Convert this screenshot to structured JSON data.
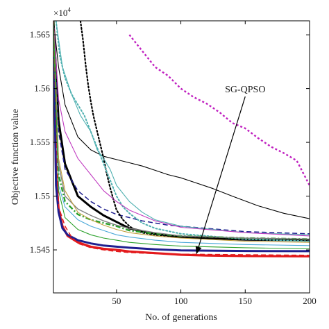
{
  "chart_data": {
    "type": "line",
    "xlabel": "No. of generations",
    "ylabel": "Objective function value",
    "y_multiplier": "×10",
    "y_multiplier_exp": "4",
    "xlim": [
      1,
      200
    ],
    "ylim": [
      15.41,
      15.663
    ],
    "xticks": [
      50,
      100,
      150,
      200
    ],
    "xtick_labels": [
      "50",
      "100",
      "150",
      "200"
    ],
    "yticks": [
      15.45,
      15.5,
      15.55,
      15.6,
      15.65
    ],
    "ytick_labels": [
      "1.545",
      "1.55",
      "1.555",
      "1.56",
      "1.565"
    ],
    "grid": false,
    "annotation": {
      "text": "SG-QPSO",
      "from": [
        150,
        15.59
      ],
      "to": [
        112,
        15.446
      ]
    },
    "series": [
      {
        "color": "#e31a1c",
        "style": "solid",
        "width": 3.2,
        "x": [
          1,
          3,
          5,
          8,
          12,
          20,
          30,
          40,
          50,
          60,
          80,
          100,
          120,
          150,
          200
        ],
        "y": [
          15.663,
          15.52,
          15.488,
          15.472,
          15.463,
          15.457,
          15.453,
          15.451,
          15.45,
          15.4485,
          15.447,
          15.4455,
          15.4448,
          15.4443,
          15.444
        ]
      },
      {
        "color": "#1f1f8f",
        "style": "solid",
        "width": 3.0,
        "x": [
          1,
          3,
          5,
          8,
          12,
          20,
          30,
          40,
          50,
          60,
          80,
          100,
          150,
          200
        ],
        "y": [
          15.663,
          15.51,
          15.485,
          15.47,
          15.464,
          15.459,
          15.456,
          15.454,
          15.453,
          15.452,
          15.4505,
          15.4495,
          15.449,
          15.4488
        ]
      },
      {
        "color": "#000000",
        "style": "solid",
        "width": 3.0,
        "x": [
          1,
          5,
          10,
          20,
          30,
          40,
          50,
          60,
          80,
          100,
          150,
          200
        ],
        "y": [
          15.663,
          15.57,
          15.53,
          15.5,
          15.49,
          15.482,
          15.476,
          15.47,
          15.465,
          15.462,
          15.4595,
          15.459
        ]
      },
      {
        "color": "#000000",
        "style": "solid",
        "width": 1.1,
        "x": [
          1,
          5,
          10,
          20,
          30,
          40,
          50,
          60,
          70,
          80,
          90,
          100,
          110,
          125,
          140,
          160,
          180,
          200
        ],
        "y": [
          15.663,
          15.62,
          15.585,
          15.555,
          15.543,
          15.537,
          15.534,
          15.531,
          15.528,
          15.524,
          15.52,
          15.517,
          15.513,
          15.507,
          15.5,
          15.491,
          15.484,
          15.479
        ]
      },
      {
        "color": "#1f1f8f",
        "style": "dashed",
        "width": 1.5,
        "x": [
          1,
          5,
          10,
          20,
          30,
          40,
          50,
          60,
          70,
          90,
          120,
          150,
          200
        ],
        "y": [
          15.663,
          15.56,
          15.525,
          15.505,
          15.495,
          15.488,
          15.483,
          15.48,
          15.477,
          15.473,
          15.47,
          15.467,
          15.465
        ]
      },
      {
        "color": "#c020c0",
        "style": "dotted-square",
        "width": 2.4,
        "x": [
          60,
          70,
          80,
          90,
          100,
          110,
          120,
          130,
          140,
          150,
          160,
          170,
          180,
          190,
          200
        ],
        "y": [
          15.65,
          15.635,
          15.62,
          15.612,
          15.6,
          15.592,
          15.586,
          15.578,
          15.568,
          15.563,
          15.554,
          15.546,
          15.54,
          15.533,
          15.51
        ]
      },
      {
        "color": "#000000",
        "style": "dotted-bold",
        "width": 2.2,
        "x": [
          22,
          24,
          26,
          28,
          30,
          32,
          35,
          38,
          40,
          42,
          45,
          48,
          50,
          55,
          60,
          65,
          70,
          80,
          100,
          150,
          200
        ],
        "y": [
          15.663,
          15.645,
          15.622,
          15.603,
          15.588,
          15.575,
          15.56,
          15.545,
          15.535,
          15.523,
          15.508,
          15.495,
          15.487,
          15.478,
          15.472,
          15.468,
          15.466,
          15.464,
          15.462,
          15.46,
          15.459
        ]
      },
      {
        "color": "#4fb0b0",
        "style": "dotted-bold",
        "width": 2.0,
        "x": [
          3,
          6,
          10,
          15,
          20,
          25,
          30,
          35,
          40,
          45,
          50,
          55,
          60,
          70,
          80,
          100,
          150,
          200
        ],
        "y": [
          15.663,
          15.63,
          15.61,
          15.595,
          15.585,
          15.575,
          15.56,
          15.545,
          15.53,
          15.515,
          15.5,
          15.49,
          15.484,
          15.475,
          15.47,
          15.465,
          15.46,
          15.458
        ]
      },
      {
        "color": "#2aa02a",
        "style": "dashdot",
        "width": 2.4,
        "x": [
          1,
          5,
          10,
          20,
          30,
          40,
          50,
          60,
          80,
          100,
          150,
          200
        ],
        "y": [
          15.663,
          15.52,
          15.495,
          15.483,
          15.478,
          15.475,
          15.472,
          15.468,
          15.465,
          15.463,
          15.461,
          15.46
        ]
      },
      {
        "color": "#808080",
        "style": "solid",
        "width": 1.4,
        "x": [
          1,
          5,
          10,
          20,
          30,
          40,
          50,
          60,
          80,
          100,
          150,
          200
        ],
        "y": [
          15.663,
          15.53,
          15.5,
          15.488,
          15.482,
          15.477,
          15.473,
          15.47,
          15.466,
          15.463,
          15.461,
          15.46
        ]
      },
      {
        "color": "#4fb0b0",
        "style": "solid",
        "width": 1.1,
        "x": [
          3,
          8,
          15,
          22,
          30,
          35,
          40,
          45,
          50,
          60,
          70,
          80,
          100,
          150,
          200
        ],
        "y": [
          15.663,
          15.62,
          15.595,
          15.575,
          15.56,
          15.543,
          15.535,
          15.525,
          15.51,
          15.495,
          15.485,
          15.478,
          15.472,
          15.466,
          15.464
        ]
      },
      {
        "color": "#c03ac0",
        "style": "solid",
        "width": 1.1,
        "x": [
          1,
          5,
          10,
          20,
          30,
          40,
          50,
          60,
          80,
          100,
          150,
          200
        ],
        "y": [
          15.663,
          15.59,
          15.56,
          15.535,
          15.52,
          15.505,
          15.495,
          15.487,
          15.477,
          15.471,
          15.466,
          15.463
        ]
      },
      {
        "color": "#c2a040",
        "style": "solid",
        "width": 1.1,
        "x": [
          1,
          5,
          10,
          20,
          30,
          40,
          50,
          60,
          80,
          100,
          150,
          200
        ],
        "y": [
          15.663,
          15.535,
          15.505,
          15.485,
          15.478,
          15.473,
          15.469,
          15.466,
          15.463,
          15.461,
          15.458,
          15.457
        ]
      },
      {
        "color": "#4aa8d8",
        "style": "solid",
        "width": 1.1,
        "x": [
          1,
          5,
          10,
          20,
          30,
          40,
          50,
          60,
          80,
          100,
          150,
          200
        ],
        "y": [
          15.663,
          15.51,
          15.49,
          15.478,
          15.472,
          15.468,
          15.464,
          15.462,
          15.459,
          15.457,
          15.455,
          15.454
        ]
      },
      {
        "color": "#e31a1c",
        "style": "dashed",
        "width": 1.5,
        "x": [
          1,
          5,
          10,
          15,
          20,
          30,
          40,
          50,
          60,
          80,
          100,
          150,
          200
        ],
        "y": [
          15.663,
          15.49,
          15.472,
          15.462,
          15.456,
          15.452,
          15.45,
          15.4485,
          15.4475,
          15.4465,
          15.446,
          15.4455,
          15.445
        ]
      },
      {
        "color": "#2aa02a",
        "style": "solid",
        "width": 1.1,
        "x": [
          1,
          5,
          10,
          20,
          30,
          40,
          50,
          60,
          80,
          100,
          150,
          200
        ],
        "y": [
          15.663,
          15.505,
          15.48,
          15.469,
          15.464,
          15.461,
          15.459,
          15.457,
          15.455,
          15.4535,
          15.452,
          15.451
        ]
      }
    ]
  }
}
